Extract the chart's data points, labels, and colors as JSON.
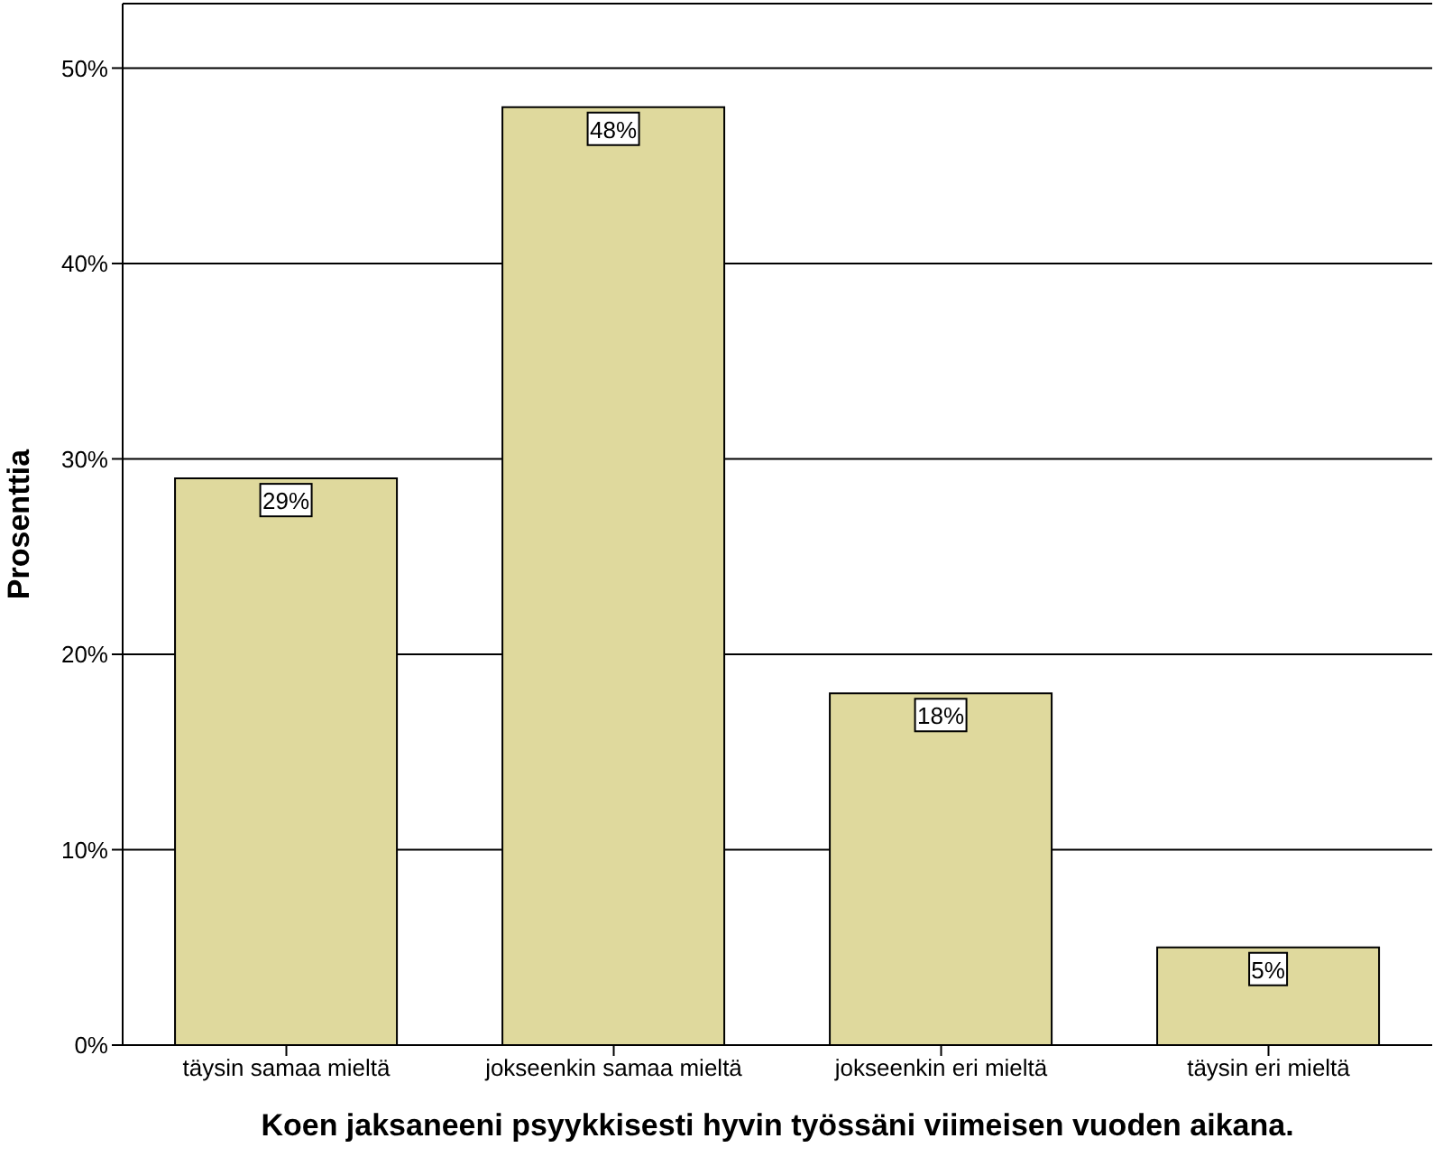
{
  "chart_data": {
    "type": "bar",
    "xlabel": "Koen jaksaneeni psyykkisesti hyvin työssäni viimeisen vuoden aikana.",
    "ylabel": "Prosenttia",
    "categories": [
      "täysin samaa mieltä",
      "jokseenkin samaa mieltä",
      "jokseenkin eri mieltä",
      "täysin eri mieltä"
    ],
    "values": [
      29,
      48,
      18,
      5
    ],
    "value_labels": [
      "29%",
      "48%",
      "18%",
      "5%"
    ],
    "color": "#dfd99d",
    "ylim": [
      0,
      53.3
    ],
    "yticks": [
      {
        "value": 0,
        "label": "0%"
      },
      {
        "value": 10,
        "label": "10%"
      },
      {
        "value": 20,
        "label": "20%"
      },
      {
        "value": 30,
        "label": "30%"
      },
      {
        "value": 40,
        "label": "40%"
      },
      {
        "value": 50,
        "label": "50%"
      }
    ],
    "grid": "y"
  }
}
